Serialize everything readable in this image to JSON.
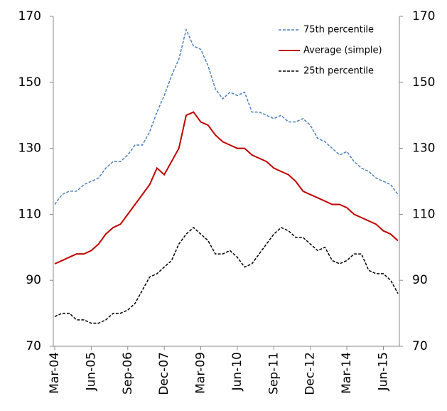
{
  "chart_data": {
    "type": "line",
    "categories": [
      "Mar-04",
      null,
      null,
      null,
      null,
      "Jun-05",
      null,
      null,
      null,
      null,
      "Sep-06",
      null,
      null,
      null,
      null,
      "Dec-07",
      null,
      null,
      null,
      null,
      "Mar-09",
      null,
      null,
      null,
      null,
      "Jun-10",
      null,
      null,
      null,
      null,
      "Sep-11",
      null,
      null,
      null,
      null,
      "Dec-12",
      null,
      null,
      null,
      null,
      "Mar-14",
      null,
      null,
      null,
      null,
      "Jun-15",
      null,
      null
    ],
    "series": [
      {
        "name": "75th percentile",
        "color": "#4f81bd",
        "dashed": true,
        "values": [
          113,
          116,
          117,
          117,
          119,
          120,
          121,
          124,
          126,
          126,
          128,
          131,
          131,
          135,
          141,
          146,
          152,
          157,
          166,
          161,
          160,
          155,
          148,
          145,
          147,
          146,
          147,
          141,
          141,
          140,
          139,
          140,
          138,
          138,
          139,
          137,
          133,
          132,
          130,
          128,
          129,
          126,
          124,
          123,
          121,
          120,
          119,
          116
        ]
      },
      {
        "name": "Average (simple)",
        "color": "#c00000",
        "dashed": false,
        "values": [
          95,
          96,
          97,
          98,
          98,
          99,
          101,
          104,
          106,
          107,
          110,
          113,
          116,
          119,
          124,
          122,
          126,
          130,
          140,
          141,
          138,
          137,
          134,
          132,
          131,
          130,
          130,
          128,
          127,
          126,
          124,
          123,
          122,
          120,
          117,
          116,
          115,
          114,
          113,
          113,
          112,
          110,
          109,
          108,
          107,
          105,
          104,
          102
        ]
      },
      {
        "name": "25th percentile",
        "color": "#000000",
        "dashed": true,
        "values": [
          79,
          80,
          80,
          78,
          78,
          77,
          77,
          78,
          80,
          80,
          81,
          83,
          87,
          91,
          92,
          94,
          96,
          101,
          104,
          106,
          104,
          102,
          98,
          98,
          99,
          97,
          94,
          95,
          98,
          101,
          104,
          106,
          105,
          103,
          103,
          101,
          99,
          100,
          96,
          95,
          96,
          98,
          98,
          93,
          92,
          92,
          90,
          86
        ]
      }
    ],
    "ylim": [
      70,
      170
    ],
    "yticks": [
      70,
      90,
      110,
      130,
      150,
      170
    ],
    "y2lim": [
      70,
      170
    ],
    "y2ticks": [
      70,
      90,
      110,
      130,
      150,
      170
    ],
    "legend": "top-right"
  }
}
